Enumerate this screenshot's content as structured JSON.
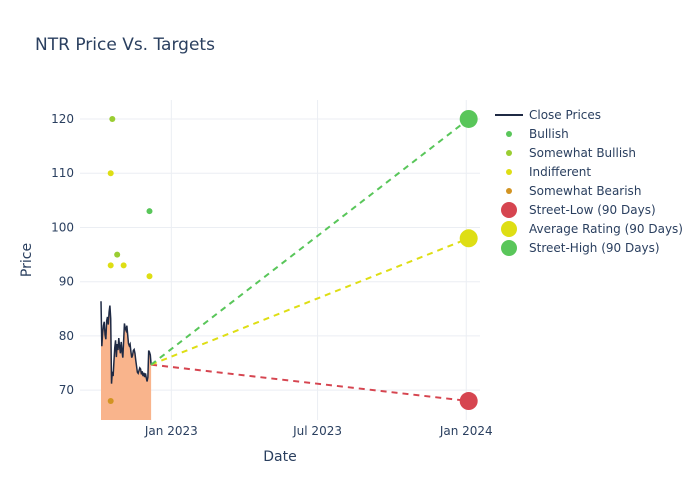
{
  "chart_data": {
    "type": "scatter",
    "title": "NTR Price Vs. Targets",
    "xlabel": "Date",
    "ylabel": "Price",
    "x_range": [
      "2022-09-10",
      "2024-01-18"
    ],
    "ylim": [
      64.5,
      123.5
    ],
    "x_ticks": [
      {
        "date": "2023-01-01",
        "label": "Jan 2023"
      },
      {
        "date": "2023-07-01",
        "label": "Jul 2023"
      },
      {
        "date": "2024-01-01",
        "label": "Jan 2024"
      }
    ],
    "y_ticks": [
      70,
      80,
      90,
      100,
      110,
      120
    ],
    "grid": true,
    "legend_position": "right",
    "close_prices": {
      "name": "Close Prices",
      "color": "#1f2a44",
      "fill_color": "#f9b48c",
      "points": [
        [
          "2022-10-06",
          86.4
        ],
        [
          "2022-10-07",
          78.1
        ],
        [
          "2022-10-08",
          80.5
        ],
        [
          "2022-10-09",
          81.9
        ],
        [
          "2022-10-10",
          82.6
        ],
        [
          "2022-10-11",
          80.2
        ],
        [
          "2022-10-12",
          79.4
        ],
        [
          "2022-10-13",
          82.8
        ],
        [
          "2022-10-14",
          83.5
        ],
        [
          "2022-10-15",
          82.1
        ],
        [
          "2022-10-16",
          84.4
        ],
        [
          "2022-10-17",
          85.6
        ],
        [
          "2022-10-18",
          83.2
        ],
        [
          "2022-10-19",
          71.2
        ],
        [
          "2022-10-20",
          73.4
        ],
        [
          "2022-10-21",
          72.6
        ],
        [
          "2022-10-22",
          75.3
        ],
        [
          "2022-10-23",
          77.8
        ],
        [
          "2022-10-24",
          79.2
        ],
        [
          "2022-10-25",
          76.1
        ],
        [
          "2022-10-26",
          78.5
        ],
        [
          "2022-10-27",
          77.4
        ],
        [
          "2022-10-28",
          79.6
        ],
        [
          "2022-10-29",
          78.0
        ],
        [
          "2022-10-30",
          76.8
        ],
        [
          "2022-10-31",
          78.9
        ],
        [
          "2022-11-01",
          77.2
        ],
        [
          "2022-11-02",
          76.0
        ],
        [
          "2022-11-03",
          79.1
        ],
        [
          "2022-11-04",
          82.3
        ],
        [
          "2022-11-05",
          81.4
        ],
        [
          "2022-11-06",
          81.0
        ],
        [
          "2022-11-07",
          81.9
        ],
        [
          "2022-11-08",
          80.2
        ],
        [
          "2022-11-09",
          78.6
        ],
        [
          "2022-11-10",
          78.2
        ],
        [
          "2022-11-11",
          78.5
        ],
        [
          "2022-11-12",
          77.1
        ],
        [
          "2022-11-13",
          76.0
        ],
        [
          "2022-11-14",
          76.4
        ],
        [
          "2022-11-15",
          77.3
        ],
        [
          "2022-11-16",
          77.5
        ],
        [
          "2022-11-17",
          76.8
        ],
        [
          "2022-11-18",
          75.5
        ],
        [
          "2022-11-19",
          74.4
        ],
        [
          "2022-11-20",
          73.3
        ],
        [
          "2022-11-21",
          73.1
        ],
        [
          "2022-11-22",
          73.6
        ],
        [
          "2022-11-23",
          74.1
        ],
        [
          "2022-11-24",
          73.9
        ],
        [
          "2022-11-25",
          72.9
        ],
        [
          "2022-11-26",
          73.5
        ],
        [
          "2022-11-27",
          72.6
        ],
        [
          "2022-11-28",
          73.2
        ],
        [
          "2022-11-29",
          72.4
        ],
        [
          "2022-11-30",
          73.1
        ],
        [
          "2022-12-01",
          72.3
        ],
        [
          "2022-12-02",
          71.6
        ],
        [
          "2022-12-03",
          72.4
        ],
        [
          "2022-12-04",
          77.3
        ],
        [
          "2022-12-05",
          77.0
        ],
        [
          "2022-12-06",
          76.5
        ],
        [
          "2022-12-07",
          74.7
        ]
      ]
    },
    "rating_series": [
      {
        "name": "Bullish",
        "color": "#59c65a",
        "points": [
          [
            "2022-12-05",
            103
          ]
        ]
      },
      {
        "name": "Somewhat Bullish",
        "color": "#9acd32",
        "points": [
          [
            "2022-10-20",
            120
          ],
          [
            "2022-10-26",
            95
          ]
        ]
      },
      {
        "name": "Indifferent",
        "color": "#dede14",
        "points": [
          [
            "2022-10-18",
            110
          ],
          [
            "2022-10-18",
            93
          ],
          [
            "2022-11-03",
            93
          ],
          [
            "2022-12-05",
            91
          ]
        ]
      },
      {
        "name": "Somewhat Bearish",
        "color": "#d29422",
        "points": [
          [
            "2022-10-18",
            68
          ]
        ]
      }
    ],
    "target_series": [
      {
        "name": "Street-Low (90 Days)",
        "color": "#d64550",
        "value": 68,
        "date": "2024-01-04"
      },
      {
        "name": "Average Rating (90 Days)",
        "color": "#dede14",
        "value": 98,
        "date": "2024-01-04"
      },
      {
        "name": "Street-High (90 Days)",
        "color": "#59c65a",
        "value": 120,
        "date": "2024-01-04"
      }
    ],
    "target_lines_start": {
      "date": "2022-12-07",
      "value": 74.7
    }
  }
}
